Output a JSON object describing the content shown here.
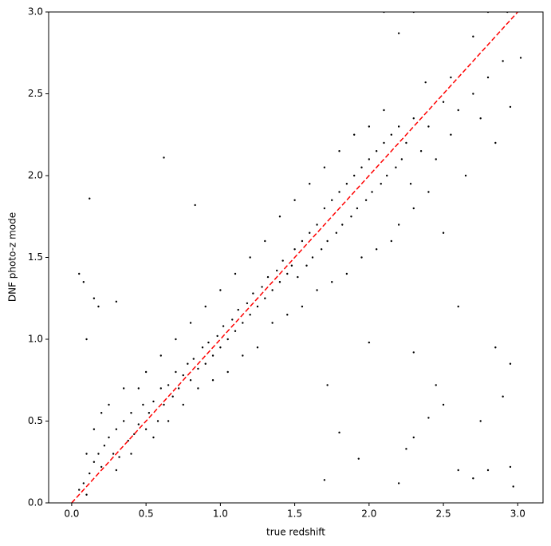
{
  "chart_data": {
    "type": "scatter",
    "x_label": "true redshift",
    "y_label": "DNF photo-z mode",
    "color": "#000000",
    "x": [
      0.05,
      0.08,
      0.1,
      0.12,
      0.15,
      0.18,
      0.2,
      0.22,
      0.25,
      0.28,
      0.3,
      0.32,
      0.35,
      0.38,
      0.4,
      0.42,
      0.45,
      0.48,
      0.5,
      0.52,
      0.55,
      0.58,
      0.6,
      0.62,
      0.65,
      0.68,
      0.7,
      0.72,
      0.75,
      0.78,
      0.8,
      0.82,
      0.85,
      0.88,
      0.9,
      0.92,
      0.95,
      0.98,
      1.0,
      1.02,
      1.05,
      1.08,
      1.1,
      1.12,
      1.15,
      1.18,
      1.2,
      1.22,
      1.25,
      1.28,
      1.3,
      1.32,
      1.35,
      1.38,
      1.4,
      1.42,
      1.45,
      1.48,
      1.5,
      1.52,
      1.55,
      1.58,
      1.6,
      1.62,
      1.65,
      1.68,
      1.7,
      1.72,
      1.75,
      1.78,
      1.8,
      1.82,
      1.85,
      1.88,
      1.9,
      1.92,
      1.95,
      1.98,
      2.0,
      2.02,
      2.05,
      2.08,
      2.1,
      2.12,
      2.15,
      2.18,
      2.2,
      2.22,
      2.25,
      2.28,
      2.3,
      2.35,
      2.4,
      2.45,
      2.5,
      2.55,
      2.6,
      2.65,
      2.7,
      2.75,
      2.8,
      2.85,
      2.9,
      2.95,
      3.02,
      0.1,
      0.15,
      0.2,
      0.25,
      0.3,
      0.35,
      0.4,
      0.45,
      0.5,
      0.55,
      0.6,
      0.65,
      0.7,
      0.75,
      0.8,
      0.85,
      0.9,
      0.95,
      1.0,
      1.05,
      1.1,
      1.15,
      1.2,
      1.25,
      1.3,
      1.35,
      1.4,
      1.45,
      1.5,
      1.55,
      1.6,
      1.65,
      1.7,
      1.75,
      1.8,
      1.85,
      1.9,
      1.95,
      2.0,
      2.05,
      2.1,
      2.15,
      2.2,
      2.3,
      2.4,
      2.5,
      0.05,
      0.08,
      0.12,
      0.15,
      0.18,
      0.1,
      0.3,
      0.62,
      0.83,
      1.8,
      1.72,
      2.2,
      2.25,
      2.3,
      2.4,
      2.45,
      2.6,
      2.7,
      2.75,
      2.8,
      2.9,
      2.95,
      2.97,
      1.93,
      1.7,
      2.3,
      2.5,
      2.2,
      2.38,
      2.55,
      2.7,
      2.8,
      2.93,
      2.3,
      2.1,
      2.0,
      2.6,
      2.85,
      2.95
    ],
    "values": [
      0.08,
      0.12,
      0.05,
      0.18,
      0.25,
      0.3,
      0.22,
      0.35,
      0.4,
      0.3,
      0.45,
      0.28,
      0.5,
      0.38,
      0.55,
      0.42,
      0.48,
      0.6,
      0.45,
      0.55,
      0.62,
      0.5,
      0.7,
      0.6,
      0.72,
      0.65,
      0.8,
      0.7,
      0.78,
      0.85,
      0.75,
      0.88,
      0.82,
      0.95,
      0.85,
      0.98,
      0.9,
      1.02,
      0.95,
      1.08,
      1.0,
      1.12,
      1.05,
      1.18,
      1.1,
      1.22,
      1.15,
      1.28,
      1.2,
      1.32,
      1.25,
      1.38,
      1.3,
      1.42,
      1.35,
      1.48,
      1.4,
      1.45,
      1.55,
      1.38,
      1.6,
      1.45,
      1.65,
      1.5,
      1.7,
      1.55,
      1.8,
      1.6,
      1.85,
      1.65,
      1.9,
      1.7,
      1.95,
      1.75,
      2.0,
      1.8,
      2.05,
      1.85,
      2.1,
      1.9,
      2.15,
      1.95,
      2.2,
      2.0,
      2.25,
      2.05,
      2.3,
      2.1,
      2.2,
      1.95,
      2.35,
      2.15,
      2.3,
      2.1,
      2.45,
      2.25,
      2.4,
      2.0,
      2.5,
      2.35,
      2.6,
      2.2,
      2.7,
      2.42,
      2.72,
      0.3,
      0.45,
      0.55,
      0.6,
      0.2,
      0.7,
      0.3,
      0.7,
      0.8,
      0.4,
      0.9,
      0.5,
      1.0,
      0.6,
      1.1,
      0.7,
      1.2,
      0.75,
      1.3,
      0.8,
      1.4,
      0.9,
      1.5,
      0.95,
      1.6,
      1.1,
      1.75,
      1.15,
      1.85,
      1.2,
      1.95,
      1.3,
      2.05,
      1.35,
      2.15,
      1.4,
      2.25,
      1.5,
      2.3,
      1.55,
      2.4,
      1.6,
      1.7,
      1.8,
      1.9,
      1.65,
      1.4,
      1.35,
      1.86,
      1.25,
      1.2,
      1.0,
      1.23,
      2.11,
      1.82,
      0.43,
      0.72,
      0.12,
      0.33,
      0.4,
      0.52,
      0.72,
      0.2,
      0.15,
      0.5,
      0.2,
      0.65,
      0.22,
      0.1,
      0.27,
      0.14,
      0.92,
      0.6,
      2.87,
      2.57,
      2.6,
      2.85,
      3.0,
      3.0,
      3.0,
      3.0,
      0.98,
      1.2,
      0.95,
      0.85
    ],
    "reference_line": {
      "x": [
        0,
        3
      ],
      "y": [
        0,
        3
      ],
      "color": "#ff0000",
      "dashed": true
    },
    "xlim": [
      -0.155,
      3.17
    ],
    "ylim": [
      0,
      3
    ],
    "xticks": [
      {
        "value": 0,
        "label": "0.0"
      },
      0.5,
      {
        "value": 1,
        "label": "1.0"
      },
      1.5,
      {
        "value": 2,
        "label": "2.0"
      },
      2.5,
      {
        "value": 3,
        "label": "3.0"
      }
    ],
    "yticks": [
      {
        "value": 0,
        "label": "0.0"
      },
      0.5,
      {
        "value": 1,
        "label": "1.0"
      },
      1.5,
      {
        "value": 2,
        "label": "2.0"
      },
      2.5,
      {
        "value": 3,
        "label": "3.0"
      }
    ],
    "grid": false
  }
}
